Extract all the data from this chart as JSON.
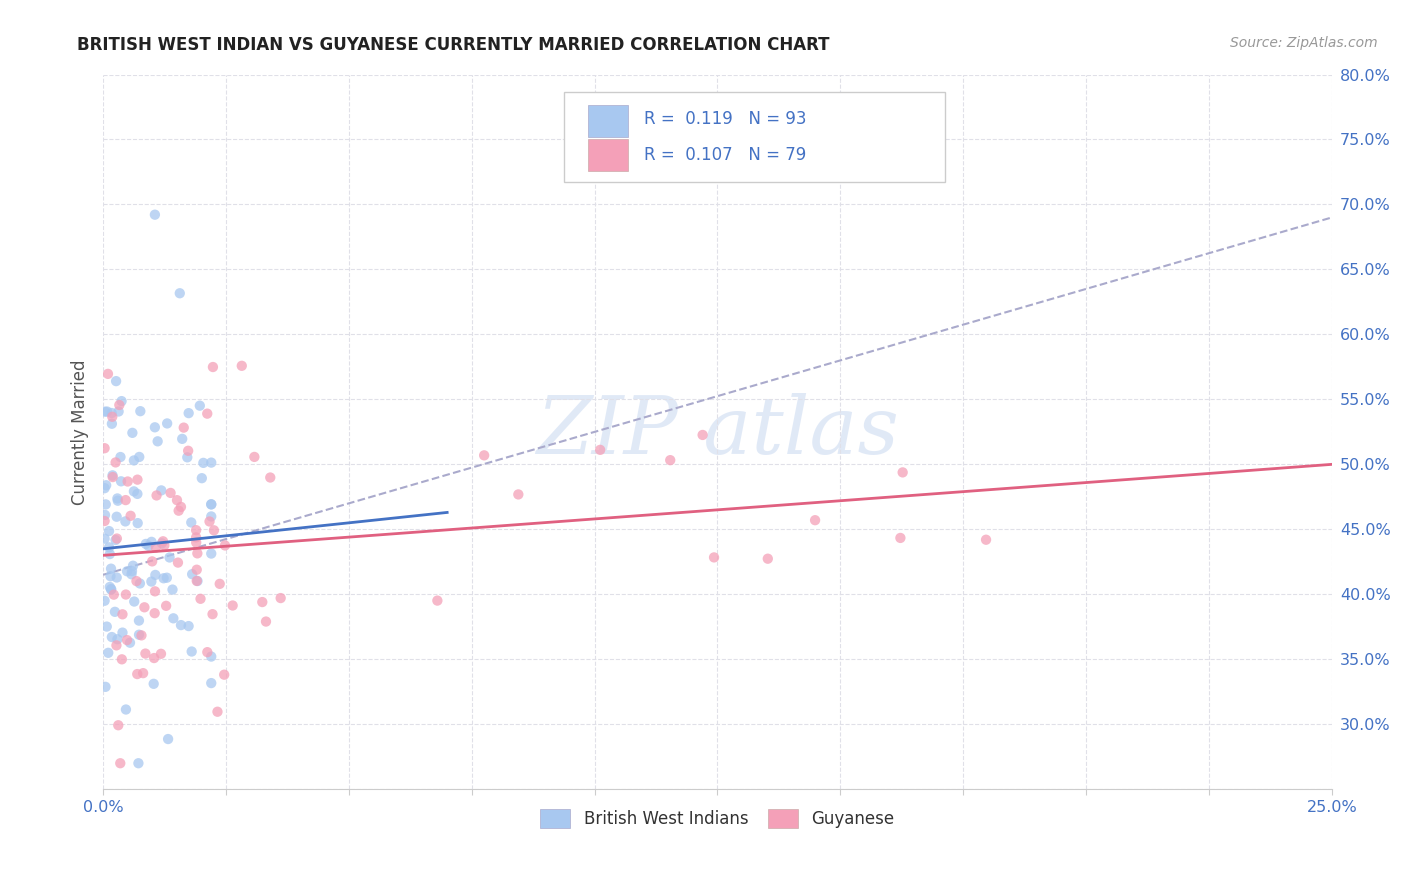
{
  "title": "BRITISH WEST INDIAN VS GUYANESE CURRENTLY MARRIED CORRELATION CHART",
  "source": "Source: ZipAtlas.com",
  "ylabel": "Currently Married",
  "xlim": [
    0.0,
    0.25
  ],
  "ylim": [
    0.25,
    0.8
  ],
  "xticks": [
    0.0,
    0.025,
    0.05,
    0.075,
    0.1,
    0.125,
    0.15,
    0.175,
    0.2,
    0.225,
    0.25
  ],
  "yticks": [
    0.25,
    0.3,
    0.35,
    0.4,
    0.45,
    0.5,
    0.55,
    0.6,
    0.65,
    0.7,
    0.75,
    0.8
  ],
  "ytick_labels": [
    "",
    "30.0%",
    "35.0%",
    "40.0%",
    "45.0%",
    "50.0%",
    "55.0%",
    "60.0%",
    "65.0%",
    "70.0%",
    "75.0%",
    "80.0%"
  ],
  "xtick_labels_show": [
    "0.0%",
    "25.0%"
  ],
  "blue_color": "#A8C8F0",
  "pink_color": "#F4A0B8",
  "blue_line_color": "#4472C4",
  "pink_line_color": "#E06080",
  "dashed_line_color": "#AAAACC",
  "R_blue": 0.119,
  "N_blue": 93,
  "R_pink": 0.107,
  "N_pink": 79,
  "legend_text_color": "#4472C4",
  "background_color": "#FFFFFF",
  "grid_color": "#E0E0E8",
  "title_color": "#222222",
  "blue_intercept": 0.435,
  "blue_slope": 0.4,
  "pink_intercept": 0.43,
  "pink_slope": 0.28,
  "dash_intercept": 0.415,
  "dash_slope": 1.1
}
